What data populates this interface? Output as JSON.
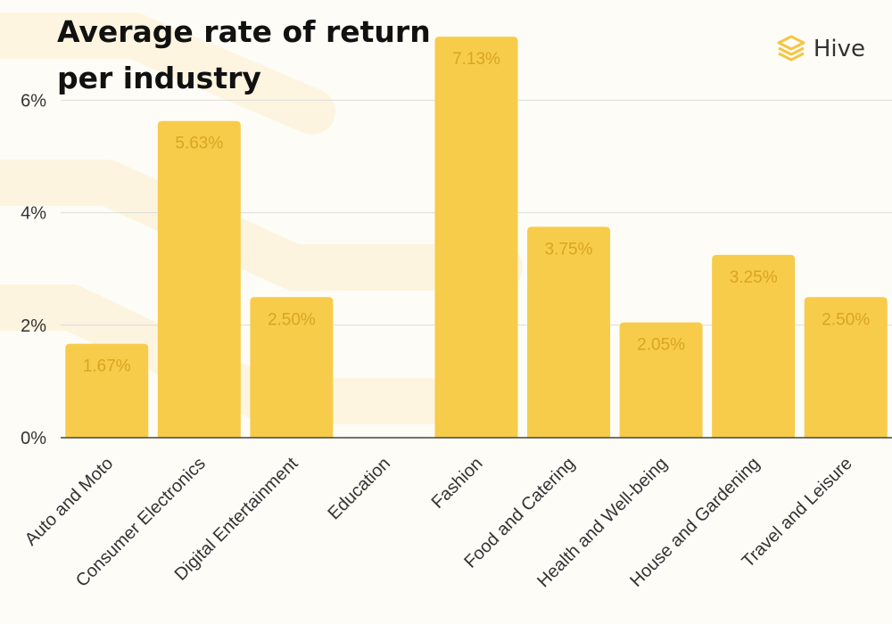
{
  "title_line1": "Average rate of return",
  "title_line2": "per industry",
  "brand": {
    "name": "Hive",
    "icon": "stacked-layers-icon",
    "color": "#f5c542"
  },
  "colors": {
    "bar": "#f7cc4a",
    "bar_label": "#d9a520",
    "grid": "#dcdcdc",
    "axis": "#444444",
    "tick": "#333333"
  },
  "chart_data": {
    "type": "bar",
    "title": "Average rate of return per industry",
    "categories": [
      "Auto and Moto",
      "Consumer Electronics",
      "Digital Entertainment",
      "Education",
      "Fashion",
      "Food and Catering",
      "Health and Well-being",
      "House and Gardening",
      "Travel and Leisure"
    ],
    "values": [
      1.67,
      5.63,
      2.5,
      null,
      7.13,
      3.75,
      2.05,
      3.25,
      2.5
    ],
    "value_labels": [
      "1.67%",
      "5.63%",
      "2.50%",
      "",
      "7.13%",
      "3.75%",
      "2.05%",
      "3.25%",
      "2.50%"
    ],
    "yticks": [
      0,
      2,
      4,
      6
    ],
    "ytick_labels": [
      "0%",
      "2%",
      "4%",
      "6%"
    ],
    "ylim": [
      0,
      7.13
    ],
    "xlabel": "",
    "ylabel": "",
    "grid": true
  }
}
